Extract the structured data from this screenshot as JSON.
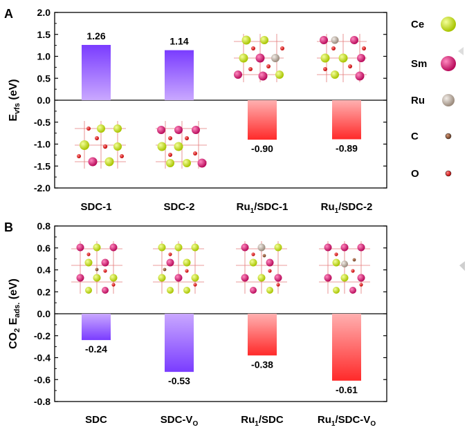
{
  "chart_data": [
    {
      "panel": "A",
      "type": "bar",
      "ylabel": {
        "main": "E",
        "sub": "vfs",
        "tail": " (eV)"
      },
      "ylim": [
        -2.0,
        2.0
      ],
      "yticks": [
        "-2.0",
        "-1.5",
        "-1.0",
        "-0.5",
        "0.0",
        "0.5",
        "1.0",
        "1.5",
        "2.0"
      ],
      "categories": [
        {
          "main": "SDC-1",
          "sub": "",
          "tail": ""
        },
        {
          "main": "SDC-2",
          "sub": "",
          "tail": ""
        },
        {
          "main": "Ru",
          "sub": "1",
          "tail": "/SDC-1"
        },
        {
          "main": "Ru",
          "sub": "1",
          "tail": "/SDC-2"
        }
      ],
      "values": [
        1.26,
        1.14,
        -0.9,
        -0.89
      ],
      "value_labels": [
        "1.26",
        "1.14",
        "-0.90",
        "-0.89"
      ],
      "bar_colors": [
        "#8a4dff",
        "#8a4dff",
        "#ff3a3a",
        "#ff3a3a"
      ],
      "grid": false
    },
    {
      "panel": "B",
      "type": "bar",
      "ylabel": {
        "main": "CO",
        "sub": "2",
        "mid": " E",
        "sub2": "ads.",
        "tail": " (eV)"
      },
      "ylim": [
        -0.8,
        0.8
      ],
      "yticks": [
        "-0.8",
        "-0.6",
        "-0.4",
        "-0.2",
        "0.0",
        "0.2",
        "0.4",
        "0.6",
        "0.8"
      ],
      "categories": [
        {
          "main": "SDC",
          "sub": "",
          "tail": "",
          "sub2": ""
        },
        {
          "main": "SDC-V",
          "sub": "",
          "tail": "",
          "sub2": "O"
        },
        {
          "main": "Ru",
          "sub": "1",
          "tail": "/SDC",
          "sub2": ""
        },
        {
          "main": "Ru",
          "sub": "1",
          "tail": "/SDC-V",
          "sub2": "O"
        }
      ],
      "values": [
        -0.24,
        -0.53,
        -0.38,
        -0.61
      ],
      "value_labels": [
        "-0.24",
        "-0.53",
        "-0.38",
        "-0.61"
      ],
      "bar_colors": [
        "#8a4dff",
        "#8a4dff",
        "#ff3a3a",
        "#ff3a3a"
      ],
      "grid": false
    }
  ],
  "legend": [
    {
      "label": "Ce",
      "color": "#c8e21a"
    },
    {
      "label": "Sm",
      "color": "#e0207a"
    },
    {
      "label": "Ru",
      "color": "#c9bcb0"
    },
    {
      "label": "C",
      "color": "#8b5a3c"
    },
    {
      "label": "O",
      "color": "#e02020"
    }
  ]
}
